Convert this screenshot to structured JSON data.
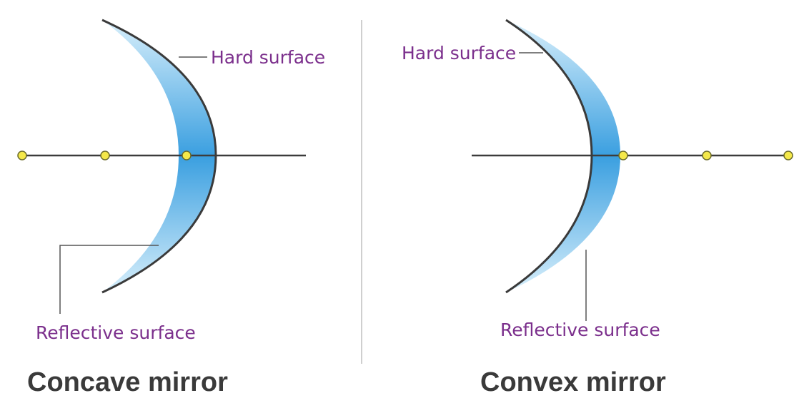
{
  "colors": {
    "label": "#7b2f8c",
    "title": "#3a3a3a",
    "axis": "#3c3c3c",
    "divider": "#cfcfcf",
    "focal_point_fill": "#f4e84a",
    "focal_point_stroke": "#6b6b2a",
    "lens_light": "#cdeafa",
    "lens_dark": "#3a9fe0"
  },
  "concave": {
    "hard_label": "Hard surface",
    "reflective_label": "Reflective surface",
    "title": "Concave mirror"
  },
  "convex": {
    "hard_label": "Hard surface",
    "reflective_label": "Reflective surface",
    "title": "Convex mirror"
  }
}
